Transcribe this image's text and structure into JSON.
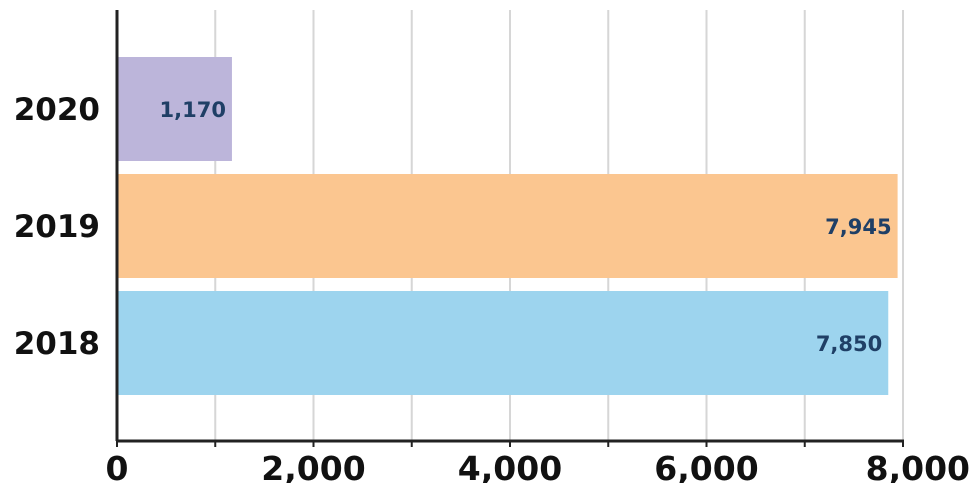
{
  "chart_data": {
    "type": "bar",
    "orientation": "horizontal",
    "categories": [
      "2020",
      "2019",
      "2018"
    ],
    "values": [
      1170,
      7945,
      7850
    ],
    "data_labels": [
      "1,170",
      "7,945",
      "7,850"
    ],
    "bar_colors": [
      "#bcb5da",
      "#fbc690",
      "#9dd4ee"
    ],
    "x_ticks": [
      0,
      2000,
      4000,
      6000,
      8000
    ],
    "x_tick_labels": [
      "0",
      "2,000",
      "4,000",
      "6,000",
      "8,000"
    ],
    "minor_ticks": [
      1000,
      3000,
      5000,
      7000
    ],
    "xlim": [
      0,
      8000
    ],
    "grid": true,
    "grid_color": "#d6d6d6",
    "title": "",
    "xlabel": "",
    "ylabel": ""
  }
}
